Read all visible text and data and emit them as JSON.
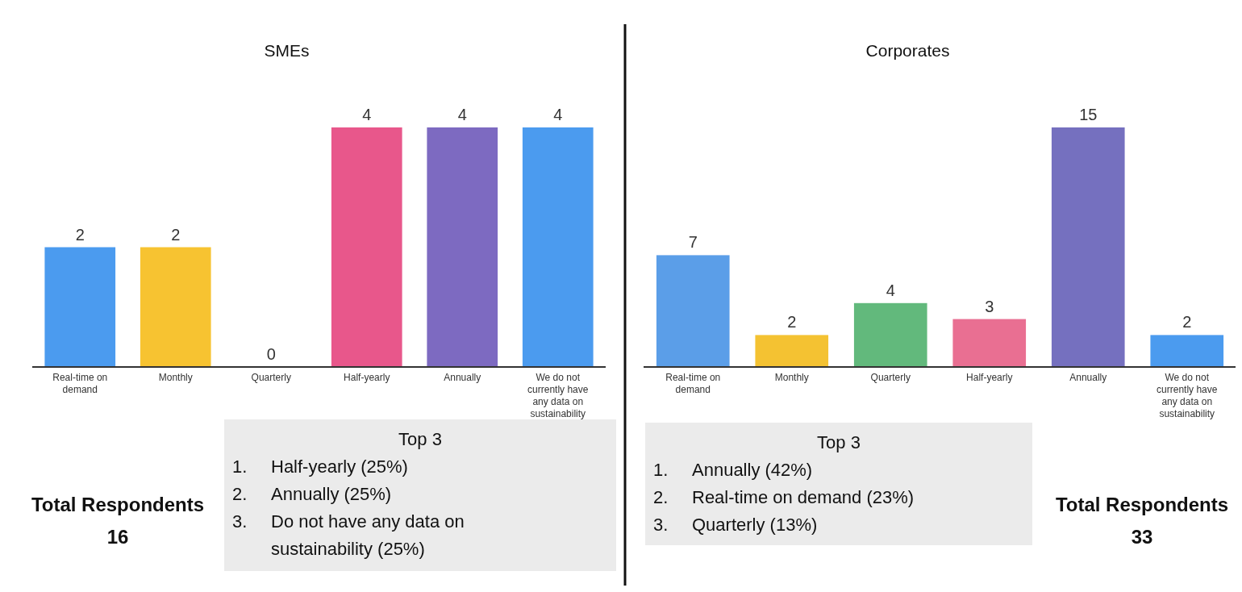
{
  "chart_data": [
    {
      "type": "bar",
      "title": "SMEs",
      "categories": [
        "Real-time on demand",
        "Monthly",
        "Quarterly",
        "Half-yearly",
        "Annually",
        "We do not currently have any data on sustainability"
      ],
      "values": [
        2,
        2,
        0,
        4,
        4,
        4
      ],
      "colors": [
        "#4b9bef",
        "#f7c331",
        "#4b9bef",
        "#e8578b",
        "#7d6ac1",
        "#4b9bef"
      ],
      "data_labels": true,
      "annotations": [
        "Top 3",
        "1.  Half-yearly (25%)",
        "2.  Annually (25%)",
        "3.  Do not have any data on sustainability (25%)",
        "Total Respondents 16"
      ]
    },
    {
      "type": "bar",
      "title": "Corporates",
      "categories": [
        "Real-time on demand",
        "Monthly",
        "Quarterly",
        "Half-yearly",
        "Annually",
        "We do not currently have any data on sustainability"
      ],
      "values": [
        7,
        2,
        4,
        3,
        15,
        2
      ],
      "colors": [
        "#5b9ee8",
        "#f4c232",
        "#62b97c",
        "#e96f92",
        "#7570bf",
        "#4b9bef"
      ],
      "data_labels": true,
      "annotations": [
        "Top 3",
        "1.  Annually (42%)",
        "2.  Real-time on demand (23%)",
        "3.  Quarterly (13%)",
        "Total Respondents 33"
      ]
    }
  ]
}
